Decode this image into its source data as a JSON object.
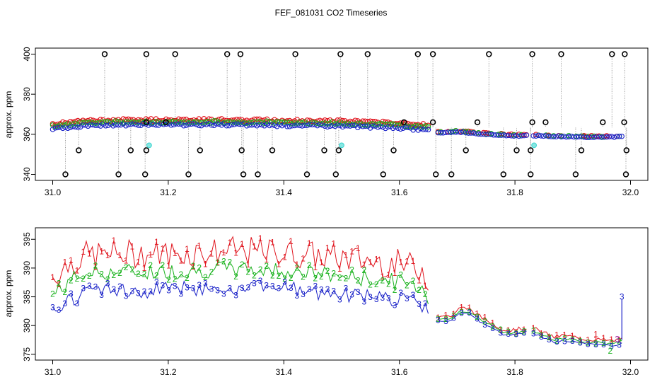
{
  "colors": {
    "black": "#000000",
    "red": "#e0151e",
    "green": "#18b21c",
    "blue": "#1a22c8",
    "cyan": "#3ad5cf",
    "purple": "#a020a0",
    "gray": "#9a9a9a"
  },
  "chart_data": [
    {
      "type": "scatter",
      "title": "FEF_081031  CO2 Timeseries",
      "xlabel": "",
      "ylabel": "approx. ppm",
      "xlim": [
        30.97,
        32.03
      ],
      "ylim": [
        337,
        403
      ],
      "xticks": [
        "31.0",
        "31.2",
        "31.4",
        "31.6",
        "31.8",
        "32.0"
      ],
      "yticks": [
        "340",
        "360",
        "380",
        "400"
      ],
      "series": [
        {
          "name": "black outliers high",
          "color": "black",
          "marker": "circle",
          "x": [
            31.09,
            31.162,
            31.212,
            31.302,
            31.325,
            31.42,
            31.498,
            31.545,
            31.632,
            31.658,
            31.755,
            31.83,
            31.88,
            31.968,
            31.99
          ],
          "y": [
            400,
            400,
            400,
            400,
            400,
            400,
            400,
            400,
            400,
            400,
            400,
            400,
            400,
            400,
            400
          ]
        },
        {
          "name": "black outliers low",
          "color": "black",
          "marker": "circle",
          "x": [
            31.022,
            31.114,
            31.16,
            31.235,
            31.33,
            31.355,
            31.44,
            31.49,
            31.572,
            31.663,
            31.69,
            31.78,
            31.827,
            31.905,
            31.992
          ],
          "y": [
            340,
            340,
            340,
            340,
            340,
            340,
            340,
            340,
            340,
            340,
            340,
            340,
            340,
            340,
            340
          ]
        },
        {
          "name": "black outliers mid",
          "color": "black",
          "marker": "circle",
          "x": [
            31.045,
            31.135,
            31.162,
            31.255,
            31.327,
            31.38,
            31.47,
            31.495,
            31.59,
            31.715,
            31.803,
            31.827,
            31.915,
            31.993
          ],
          "y": [
            352,
            352,
            352,
            352,
            352,
            352,
            352,
            352,
            352,
            352,
            352,
            352,
            352,
            352
          ]
        },
        {
          "name": "black spikes",
          "color": "black",
          "marker": "circle",
          "x": [
            31.162,
            31.196,
            31.608,
            31.658,
            31.735,
            31.83,
            31.853,
            31.952,
            31.989
          ],
          "y": [
            366,
            366,
            366,
            366,
            366,
            366,
            366,
            366,
            366
          ]
        },
        {
          "name": "cyan points",
          "color": "cyan",
          "marker": "circle",
          "x": [
            31.167,
            31.5,
            31.833
          ],
          "y": [
            354.5,
            354.5,
            354.5
          ]
        }
      ],
      "trend_segments": [
        {
          "x": [
            31.0,
            31.05,
            31.1,
            31.2,
            31.3,
            31.4,
            31.5,
            31.6,
            31.65
          ],
          "y": [
            363.5,
            365.0,
            365.5,
            365.6,
            365.6,
            365.3,
            365.0,
            364.0,
            363.0
          ]
        },
        {
          "x": [
            31.667,
            31.7,
            31.75,
            31.8,
            31.82
          ],
          "y": [
            361.0,
            361.5,
            360.2,
            359.5,
            359.5
          ]
        },
        {
          "x": [
            31.832,
            31.9,
            31.95,
            31.985
          ],
          "y": [
            359.5,
            359.0,
            358.7,
            359.0
          ]
        }
      ]
    },
    {
      "type": "line",
      "xlabel": "",
      "ylabel": "approx. ppm",
      "xlim": [
        30.97,
        32.03
      ],
      "ylim": [
        374,
        397
      ],
      "xticks": [
        "31.0",
        "31.2",
        "31.4",
        "31.6",
        "31.8",
        "32.0"
      ],
      "yticks": [
        "375",
        "380",
        "385",
        "390",
        "395"
      ],
      "series": [
        {
          "name": "1",
          "color": "red",
          "marker": "1"
        },
        {
          "name": "2",
          "color": "green",
          "marker": "2"
        },
        {
          "name": "3",
          "color": "blue",
          "marker": "3"
        }
      ],
      "trend_segments": [
        {
          "x": [
            31.0,
            31.03,
            31.06,
            31.1,
            31.2,
            31.3,
            31.4,
            31.5,
            31.6,
            31.64,
            31.65
          ],
          "y": [
            383.5,
            386.0,
            387.3,
            387.5,
            387.6,
            388.0,
            387.8,
            386.8,
            385.8,
            385.0,
            383.0
          ]
        },
        {
          "x": [
            31.667,
            31.69,
            31.705,
            31.72,
            31.74,
            31.76,
            31.78,
            31.8,
            31.82
          ],
          "y": [
            381.0,
            381.0,
            382.3,
            382.3,
            380.8,
            379.8,
            378.6,
            378.5,
            379.0
          ]
        },
        {
          "x": [
            31.832,
            31.85,
            31.87,
            31.88,
            31.9,
            31.92,
            31.95,
            31.97,
            31.985
          ],
          "y": [
            378.8,
            378.0,
            377.2,
            377.6,
            377.3,
            377.0,
            376.8,
            376.6,
            377.0
          ]
        }
      ],
      "annotations": [
        {
          "text": "3",
          "x": 31.985,
          "y": 385.0,
          "color": "blue"
        },
        {
          "text": "3",
          "x": 31.977,
          "y": 377.6,
          "color": "purple"
        },
        {
          "text": "1",
          "x": 31.94,
          "y": 378.5,
          "color": "red"
        },
        {
          "text": "2",
          "x": 31.965,
          "y": 375.6,
          "color": "green"
        }
      ]
    }
  ]
}
